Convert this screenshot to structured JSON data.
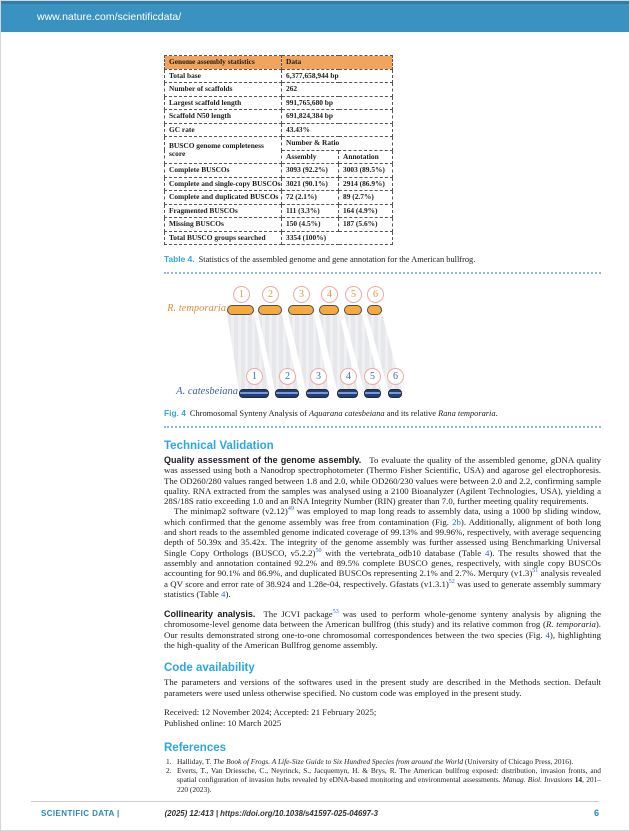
{
  "header": {
    "url": "www.nature.com/scientificdata/"
  },
  "colors": {
    "topbar_blue": "#3a92c0",
    "heading_blue": "#29a8df",
    "link_blue": "#2b66c4",
    "table_header_orange": "#f3a35b",
    "chromosome_top_orange": "#f6a93f",
    "chromosome_bottom_blue": "#203e7e"
  },
  "table": {
    "caption_label": "Table 4.",
    "caption_text": "Statistics of the assembled genome and gene annotation for the American bullfrog.",
    "col_headers": [
      "Genome assembly statistics",
      "Data"
    ],
    "simple_rows": [
      [
        "Total base",
        "6,377,658,944 bp"
      ],
      [
        "Number of scaffolds",
        "262"
      ],
      [
        "Largest scaffold length",
        "991,765,680 bp"
      ],
      [
        "Scaffold N50 length",
        "691,824,384 bp"
      ],
      [
        "GC rate",
        "43.43%"
      ]
    ],
    "busco_section_label": "BUSCO genome completeness score",
    "busco_header": "Number & Ratio",
    "busco_sub_headers": [
      "Assembly",
      "Annotation"
    ],
    "busco_rows": [
      [
        "Complete BUSCOs",
        "3093 (92.2%)",
        "3003 (89.5%)"
      ],
      [
        "Complete and single-copy BUSCOs",
        "3021 (90.1%)",
        "2914 (86.9%)"
      ],
      [
        "Complete and duplicated BUSCOs",
        "72 (2.1%)",
        "89 (2.7%)"
      ],
      [
        "Fragmented BUSCOs",
        "111 (3.3%)",
        "164 (4.9%)"
      ],
      [
        "Missing BUSCOs",
        "150 (4.5%)",
        "187 (5.6%)"
      ]
    ],
    "total_row": [
      "Total BUSCO groups searched",
      "3354 (100%)"
    ]
  },
  "figure": {
    "top_species": "R. temporaria",
    "bottom_species": "A. catesbeiana",
    "top_numbers": [
      "1",
      "2",
      "3",
      "4",
      "5",
      "6"
    ],
    "bottom_numbers": [
      "1",
      "2",
      "3",
      "4",
      "5",
      "6"
    ],
    "caption_label": "Fig. 4",
    "caption": [
      {
        "t": "Chromosomal Synteny Analysis of "
      },
      {
        "t": "Aquarana catesbeiana",
        "c": "i"
      },
      {
        "t": " and its relative "
      },
      {
        "t": "Rana temporaria",
        "c": "i"
      },
      {
        "t": "."
      }
    ]
  },
  "sections": {
    "technical_validation": {
      "title": "Technical Validation",
      "para1": [
        {
          "t": "Quality assessment of the genome assembly.",
          "c": "runin"
        },
        {
          "t": "To evaluate the quality of the assembled genome, gDNA quality was assessed using both a Nanodrop spectrophotometer (Thermo Fisher Scientific, USA) and agarose gel electrophoresis. The OD260/280 values ranged between 1.8 and 2.0, while OD260/230 values were between 2.0 and 2.2, confirming sample quality. RNA extracted from the samples was analysed using a 2100 Bioanalyzer (Agilent Technologies, USA), yielding a 28S/18S ratio exceeding 1.0 and an RNA Integrity Number (RIN) greater than 7.0, further meeting quality requirements."
        }
      ],
      "para2": [
        {
          "t": "The minimap2 software (v2.12)"
        },
        {
          "t": "49",
          "sup": true
        },
        {
          "t": " was employed to map long reads to assembly data, using a 1000 bp sliding window, which confirmed that the genome assembly was free from contamination (Fig. "
        },
        {
          "t": "2b",
          "c": "link"
        },
        {
          "t": "). Additionally, alignment of both long and short reads to the assembled genome indicated coverage of 99.13% and 99.96%, respectively, with average sequencing depth of 50.39x and 35.42x. The integrity of the genome assembly was further assessed using Benchmarking Universal Single Copy Orthologs (BUSCO, v5.2.2)"
        },
        {
          "t": "50",
          "sup": true
        },
        {
          "t": " with the vertebrata_odb10 database (Table "
        },
        {
          "t": "4",
          "c": "link"
        },
        {
          "t": "). The results showed that the assembly and annotation contained 92.2% and 89.5% complete BUSCO genes, respectively, with single copy BUSCOs accounting for 90.1% and 86.9%, and duplicated BUSCOs representing 2.1% and 2.7%. Merqury (v1.3)"
        },
        {
          "t": "51",
          "sup": true
        },
        {
          "t": " analysis revealed a QV score and error rate of 38.924 and 1.28e-04, respectively. Gfastats (v1.3.1)"
        },
        {
          "t": "52",
          "sup": true
        },
        {
          "t": " was used to generate assembly summary statistics (Table "
        },
        {
          "t": "4",
          "c": "link"
        },
        {
          "t": ")."
        }
      ],
      "para3": [
        {
          "t": "Collinearity analysis.",
          "c": "runin"
        },
        {
          "t": "The JCVI package"
        },
        {
          "t": "53",
          "sup": true
        },
        {
          "t": " was used to perform whole-genome synteny analysis by aligning the chromosome-level genome data between the American bullfrog (this study) and its relative common frog ("
        },
        {
          "t": "R. temporaria",
          "c": "i"
        },
        {
          "t": "). Our results demonstrated strong one-to-one chromosomal correspondences between the two species (Fig. "
        },
        {
          "t": "4",
          "c": "link"
        },
        {
          "t": "), highlighting the high-quality of the American Bullfrog genome assembly."
        }
      ]
    },
    "code_availability": {
      "title": "Code availability",
      "para": "The parameters and versions of the softwares used in the present study are described in the Methods section. Default parameters were used unless otherwise specified. No custom code was employed in the present study.",
      "received": "Received: 12 November 2024; Accepted: 21 February 2025;",
      "published": "Published online: 10 March 2025"
    },
    "references": {
      "title": "References",
      "items": [
        {
          "num": "1.",
          "segments": [
            {
              "t": "Halliday, T. "
            },
            {
              "t": "The Book of Frogs. A Life-Size Guide to Six Hundred Species from around the World",
              "c": "i"
            },
            {
              "t": " (University of Chicago Press, 2016)."
            }
          ]
        },
        {
          "num": "2.",
          "segments": [
            {
              "t": "Everts, T., Van Driessche, C., Neyrinck, S., Jacquemyn, H. & Brys, R. The American bullfrog exposed: distribution, invasion fronts, and spatial configuration of invasion hubs revealed by eDNA-based monitoring and environmental assessments. "
            },
            {
              "t": "Manag. Biol. Invasions",
              "c": "i"
            },
            {
              "t": " "
            },
            {
              "t": "14",
              "c": "b"
            },
            {
              "t": ", 201–220 (2023)."
            }
          ]
        }
      ]
    }
  },
  "footer": {
    "journal": "SCIENTIFIC DATA |",
    "citation": "(2025) 12:413 | https://doi.org/10.1038/s41597-025-04697-3",
    "page_number": "6"
  }
}
